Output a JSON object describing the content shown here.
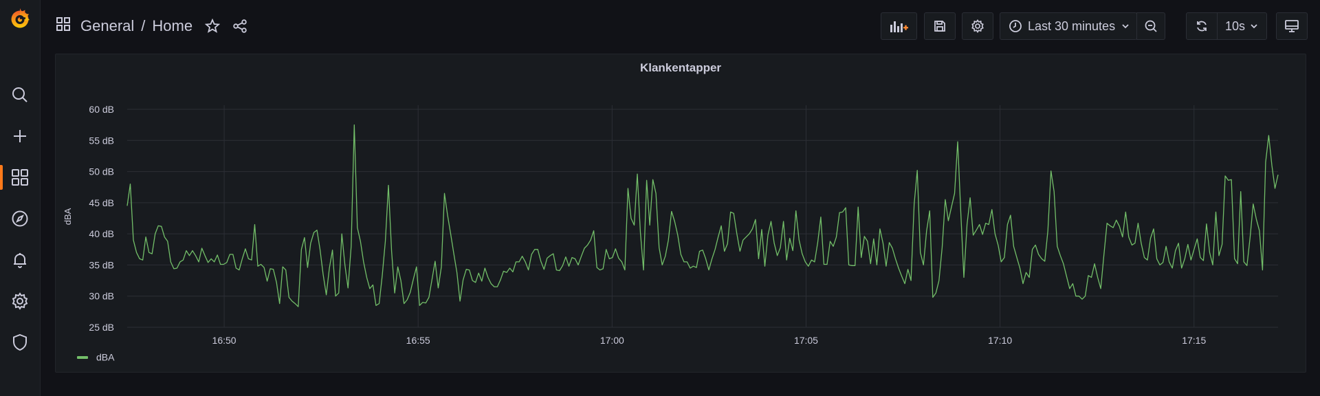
{
  "breadcrumb": {
    "folder": "General",
    "separator": "/",
    "dashboard": "Home"
  },
  "toolbar": {
    "time_range": "Last 30 minutes",
    "refresh_interval": "10s"
  },
  "sidebar": {
    "items": [
      "search",
      "create",
      "dashboards",
      "explore",
      "alerting",
      "configuration",
      "server-admin"
    ],
    "active": "dashboards"
  },
  "colors": {
    "accent": "#ff7a1a",
    "series": "#73bf69",
    "background": "#111217",
    "panel": "#181b1f"
  },
  "panel": {
    "title": "Klankentapper",
    "legend": [
      {
        "name": "dBA",
        "color": "#73bf69"
      }
    ]
  },
  "chart_data": {
    "type": "line",
    "title": "Klankentapper",
    "xlabel": "",
    "ylabel": "dBA",
    "ylim": [
      25,
      60
    ],
    "y_ticks": [
      "60 dB",
      "55 dB",
      "50 dB",
      "45 dB",
      "40 dB",
      "35 dB",
      "30 dB",
      "25 dB"
    ],
    "x_ticks": [
      "16:50",
      "16:55",
      "17:00",
      "17:05",
      "17:10",
      "17:15"
    ],
    "x_range": [
      "16:47:30",
      "17:17:10"
    ],
    "grid": true,
    "legend_position": "bottom-left",
    "series": [
      {
        "name": "dBA",
        "color": "#73bf69",
        "values": [
          44.5,
          48,
          39,
          37,
          36,
          35.8,
          39.5,
          37,
          36.8,
          40,
          41.3,
          41.2,
          39.5,
          38.8,
          35.5,
          34.4,
          34.5,
          35.5,
          35.8,
          37.3,
          36.5,
          37.3,
          36.5,
          35.5,
          37.7,
          36.5,
          35.4,
          36,
          35.5,
          36.6,
          35.1,
          35.1,
          35.4,
          36.7,
          36.7,
          34.5,
          34.2,
          36,
          37.6,
          36,
          35.8,
          41.5,
          34.8,
          35.1,
          34.6,
          32.4,
          34.4,
          34.3,
          32.2,
          28.8,
          34.7,
          34.2,
          29.8,
          29.2,
          28.8,
          28.3,
          37.5,
          39.4,
          34.6,
          38.5,
          40.2,
          40.6,
          37.5,
          33.5,
          30.2,
          34.5,
          37.4,
          30,
          30.5,
          40,
          35,
          31.3,
          38,
          57.5,
          41,
          38.8,
          35.5,
          33,
          31.2,
          31.8,
          28.5,
          28.8,
          33.3,
          38.8,
          47.8,
          37.2,
          30.5,
          34.7,
          32.5,
          28.8,
          29.4,
          30.6,
          32.7,
          34.7,
          28.5,
          29,
          28.9,
          29.8,
          32.7,
          35.6,
          31.3,
          34.7,
          46.5,
          43,
          40,
          36.8,
          33.8,
          29.2,
          32.6,
          34.3,
          34.2,
          32.5,
          32.2,
          33.7,
          32.4,
          34.5,
          33,
          32,
          31.5,
          31.5,
          32.6,
          34,
          33.8,
          34.5,
          33.9,
          35.5,
          35.5,
          36.4,
          35.5,
          34.2,
          36.7,
          37.5,
          37.5,
          35.6,
          34.3,
          36.1,
          36.5,
          36.8,
          34.2,
          34.1,
          34.9,
          36.3,
          34.8,
          36.2,
          36,
          35,
          36.4,
          37.7,
          38.2,
          39,
          40.5,
          34.6,
          34.2,
          34.4,
          37.5,
          36,
          36.2,
          37.6,
          36.1,
          35.5,
          34.2,
          47.3,
          42.5,
          41.4,
          49.6,
          40.2,
          34.2,
          48.6,
          41.4,
          48.7,
          46.5,
          37.8,
          35,
          36.4,
          39,
          43.6,
          42,
          39.8,
          36.7,
          35.5,
          35.5,
          34.5,
          34.8,
          34.6,
          37.2,
          37.4,
          36,
          34.2,
          36,
          37.5,
          39.5,
          41.3,
          37.2,
          38.4,
          43.5,
          43.3,
          40,
          37.2,
          39,
          39.5,
          40,
          40.8,
          42.3,
          36,
          40.7,
          34.8,
          39.8,
          42,
          38.5,
          36.5,
          37.8,
          42,
          35.8,
          39.3,
          37.3,
          43.7,
          39,
          36.8,
          35.5,
          34.8,
          35.8,
          35.5,
          38.6,
          42.7,
          35.1,
          35.1,
          38.8,
          38,
          39.5,
          43.4,
          43.5,
          44.2,
          35,
          34.9,
          34.9,
          44.3,
          36.2,
          39.6,
          38.8,
          35.2,
          39.2,
          35,
          40.8,
          38.5,
          34.8,
          38.6,
          37.7,
          36,
          34.5,
          33.2,
          32,
          34.3,
          32.5,
          44.8,
          50.2,
          37,
          35,
          40.5,
          43.7,
          29.8,
          30.5,
          32.5,
          37.8,
          45.5,
          42.1,
          44.3,
          46.5,
          54.8,
          43.5,
          33,
          41.5,
          45.8,
          39.8,
          40.6,
          41.5,
          39.9,
          41.7,
          41.5,
          43.9,
          40,
          38.2,
          35.5,
          36.2,
          41.5,
          43,
          38,
          36.2,
          34.5,
          32,
          33.8,
          33,
          37.5,
          38.2,
          36.7,
          36,
          35.6,
          40.5,
          50.1,
          46.8,
          38,
          36.5,
          35.2,
          33.2,
          31.2,
          32,
          30,
          30,
          29.5,
          30,
          33.3,
          33,
          35.2,
          33,
          31.2,
          36.5,
          41.7,
          41.3,
          41,
          42.2,
          41.2,
          39.5,
          43.5,
          39.5,
          38.2,
          38.5,
          41.7,
          38.5,
          36.2,
          35.8,
          39.3,
          40.8,
          36,
          35,
          35.4,
          38,
          35.5,
          34.5,
          37.3,
          38.5,
          34.5,
          36,
          38.3,
          35.8,
          37.5,
          39.2,
          36.2,
          35.7,
          41.6,
          37,
          35,
          43.5,
          36.5,
          38.3,
          49.3,
          48.6,
          48.7,
          36,
          35.2,
          46.8,
          35.5,
          34.9,
          39.4,
          44.8,
          42.4,
          40.5,
          34.2,
          51.5,
          55.8,
          51,
          47.3,
          49.5
        ]
      }
    ]
  }
}
